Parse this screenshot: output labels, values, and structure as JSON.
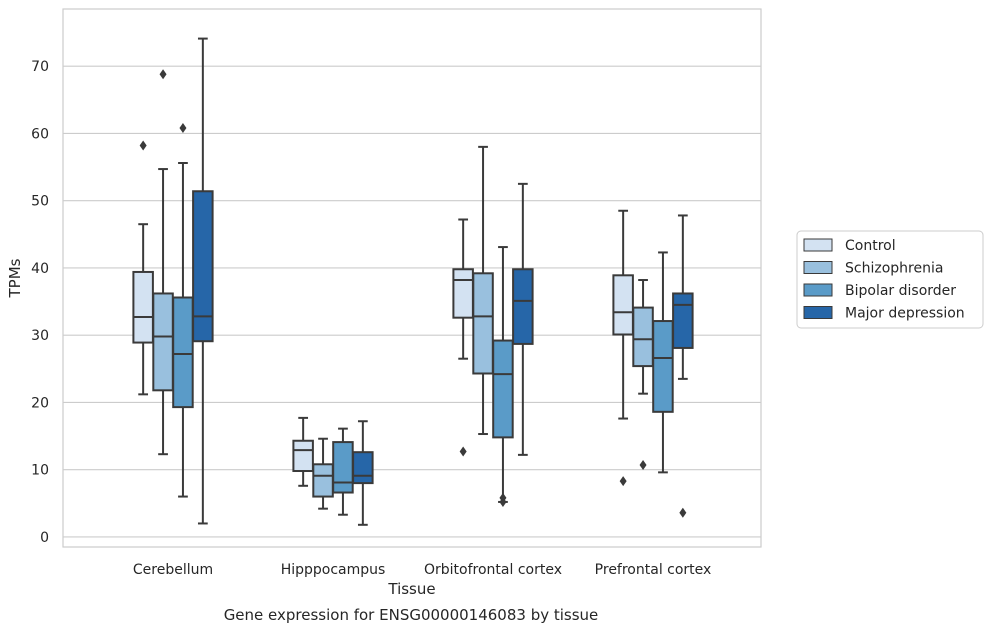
{
  "caption": "Gene expression for ENSG00000146083 by tissue",
  "chart_data": {
    "type": "boxplot",
    "xlabel": "Tissue",
    "ylabel": "TPMs",
    "ylim": [
      -1.5,
      78.5
    ],
    "yticks": [
      0,
      10,
      20,
      30,
      40,
      50,
      60,
      70
    ],
    "grid": true,
    "legend_position": "right",
    "categories": [
      "Cerebellum",
      "Hipppocampus",
      "Orbitofrontal cortex",
      "Prefrontal cortex"
    ],
    "series": [
      {
        "name": "Control",
        "color": "#d3e2f2",
        "boxes": [
          {
            "whisker_low": 21.2,
            "q1": 28.9,
            "median": 32.7,
            "q3": 39.4,
            "whisker_high": 46.5,
            "outliers": [
              58.2
            ]
          },
          {
            "whisker_low": 7.6,
            "q1": 9.8,
            "median": 12.9,
            "q3": 14.3,
            "whisker_high": 17.7,
            "outliers": []
          },
          {
            "whisker_low": 26.5,
            "q1": 32.6,
            "median": 38.2,
            "q3": 39.8,
            "whisker_high": 47.2,
            "outliers": [
              12.7
            ]
          },
          {
            "whisker_low": 17.6,
            "q1": 30.1,
            "median": 33.4,
            "q3": 38.9,
            "whisker_high": 48.5,
            "outliers": [
              8.3
            ]
          }
        ]
      },
      {
        "name": "Schizophrenia",
        "color": "#99c0de",
        "boxes": [
          {
            "whisker_low": 12.3,
            "q1": 21.8,
            "median": 29.8,
            "q3": 36.2,
            "whisker_high": 54.7,
            "outliers": [
              68.8
            ]
          },
          {
            "whisker_low": 4.2,
            "q1": 6.0,
            "median": 9.1,
            "q3": 10.8,
            "whisker_high": 14.6,
            "outliers": []
          },
          {
            "whisker_low": 15.3,
            "q1": 24.3,
            "median": 32.8,
            "q3": 39.2,
            "whisker_high": 58.0,
            "outliers": []
          },
          {
            "whisker_low": 21.3,
            "q1": 25.4,
            "median": 29.4,
            "q3": 34.1,
            "whisker_high": 38.2,
            "outliers": [
              10.7
            ]
          }
        ]
      },
      {
        "name": "Bipolar disorder",
        "color": "#5a9bc8",
        "boxes": [
          {
            "whisker_low": 6.0,
            "q1": 19.3,
            "median": 27.2,
            "q3": 35.6,
            "whisker_high": 55.6,
            "outliers": [
              60.8
            ]
          },
          {
            "whisker_low": 3.3,
            "q1": 6.6,
            "median": 8.1,
            "q3": 14.1,
            "whisker_high": 16.1,
            "outliers": []
          },
          {
            "whisker_low": 5.2,
            "q1": 14.8,
            "median": 24.2,
            "q3": 29.2,
            "whisker_high": 43.1,
            "outliers": [
              5.8,
              5.2
            ]
          },
          {
            "whisker_low": 9.6,
            "q1": 18.6,
            "median": 26.6,
            "q3": 32.1,
            "whisker_high": 42.3,
            "outliers": []
          }
        ]
      },
      {
        "name": "Major depression",
        "color": "#2666a8",
        "boxes": [
          {
            "whisker_low": 2.0,
            "q1": 29.1,
            "median": 32.8,
            "q3": 51.4,
            "whisker_high": 74.1,
            "outliers": []
          },
          {
            "whisker_low": 1.8,
            "q1": 8.0,
            "median": 9.1,
            "q3": 12.6,
            "whisker_high": 17.2,
            "outliers": []
          },
          {
            "whisker_low": 12.2,
            "q1": 28.7,
            "median": 35.1,
            "q3": 39.8,
            "whisker_high": 52.5,
            "outliers": []
          },
          {
            "whisker_low": 23.5,
            "q1": 28.1,
            "median": 34.5,
            "q3": 36.2,
            "whisker_high": 47.8,
            "outliers": [
              3.6
            ]
          }
        ]
      }
    ]
  }
}
